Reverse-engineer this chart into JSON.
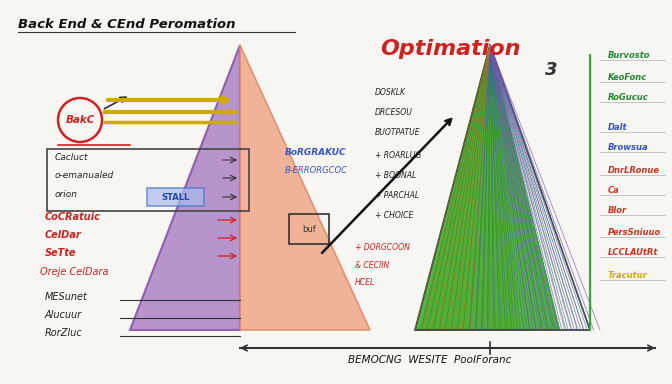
{
  "title": "Back End & CEnd Peromation",
  "optimization_title": "Optimation",
  "bg_color": "#f8f6f2",
  "back_label": "BakC",
  "left_labels_black": [
    "Cacluct",
    "o-emanualed",
    "orion"
  ],
  "left_labels_red": [
    "CoCRatuic",
    "CelDar",
    "SeTte"
  ],
  "left_label_oreje": "Oreje CelDara",
  "left_labels_bottom": [
    "MESunet",
    "Alucuur",
    "RorZluc"
  ],
  "right_labels_top": [
    "DOSKLK",
    "DRCESOU",
    "BUOTPATUE",
    "+ ROARLUG",
    "+ BOONAL",
    "+ PARCHAL",
    "+ CHOICE"
  ],
  "right_labels_mid_blue": [
    "BoRGRAKUC",
    "B-ERRORGCOC"
  ],
  "right_labels_mid_red": [
    "+ DORGCOON",
    "& CECIIN",
    "HCEL"
  ],
  "right_side_labels": [
    "Burvosto",
    "KeoFonc",
    "RoGucuc",
    "Dalt",
    "Browsua",
    "DnrLRonue",
    "Ca",
    "Blor",
    "PersSniuuo",
    "LCCLAUtRt",
    "Tracutur"
  ],
  "right_side_colors": [
    "#228833",
    "#228833",
    "#228833",
    "#3355bb",
    "#3355bb",
    "#cc3322",
    "#cc3322",
    "#cc3322",
    "#cc3322",
    "#cc3322",
    "#ccaa00"
  ],
  "bottom_label": "BEMOCNG  WESITE  PooIForanc",
  "red_color": "#cc2222",
  "blue_color": "#3355cc",
  "stall_text": "STALL"
}
